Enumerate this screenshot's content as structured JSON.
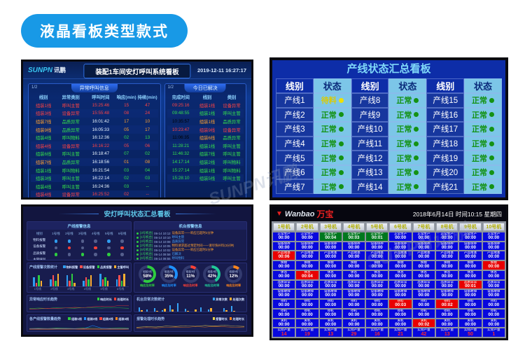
{
  "page": {
    "title": "液晶看板类型款式",
    "watermark": "SUNPN讯鹏"
  },
  "tl": {
    "brand": "SUNPN",
    "brand_cn": "讯鹏",
    "title": "装配1车间安灯呼叫系统看板",
    "datetime": "2019-12-11  16:27:17",
    "left": {
      "page": "1/2",
      "tab": "异常呼叫信息",
      "columns": [
        "线别",
        "异常类别",
        "呼叫时间",
        "响应(min)",
        "持续(min)"
      ],
      "rows": [
        {
          "line": "组装1线",
          "type": "呼叫主管",
          "time": "15:25:46",
          "resp": "15",
          "dur": "47",
          "tone": "red"
        },
        {
          "line": "组装3线",
          "type": "设备异常",
          "time": "15:55:48",
          "resp": "08",
          "dur": "24",
          "tone": "red"
        },
        {
          "line": "组装7线",
          "type": "品质异常",
          "time": "16:01:42",
          "resp": "17",
          "dur": "10",
          "tone": "orange"
        },
        {
          "line": "组装9线",
          "type": "品质异常",
          "time": "16:05:33",
          "resp": "05",
          "dur": "17",
          "tone": "orange"
        },
        {
          "line": "组装4线",
          "type": "呼叫物料",
          "time": "16:12:36",
          "resp": "02",
          "dur": "13",
          "tone": "green"
        },
        {
          "line": "组装4线",
          "type": "设备异常",
          "time": "16:16:22",
          "resp": "05",
          "dur": "06",
          "tone": "red"
        },
        {
          "line": "组装6线",
          "type": "呼叫主管",
          "time": "16:18:47",
          "resp": "07",
          "dur": "02",
          "tone": "green"
        },
        {
          "line": "组装7线",
          "type": "品质异常",
          "time": "16:18:56",
          "resp": "01",
          "dur": "08",
          "tone": "orange"
        },
        {
          "line": "组装1线",
          "type": "呼叫物料",
          "time": "16:21:54",
          "resp": "03",
          "dur": "04",
          "tone": "green"
        },
        {
          "line": "组装3线",
          "type": "呼叫主管",
          "time": "16:22:14",
          "resp": "02",
          "dur": "03",
          "tone": "green"
        },
        {
          "line": "组装4线",
          "type": "呼叫主管",
          "time": "16:24:36",
          "resp": "03",
          "dur": "--",
          "tone": "green"
        },
        {
          "line": "组装4线",
          "type": "设备异常",
          "time": "16:25:52",
          "resp": "02",
          "dur": "--",
          "tone": "red"
        }
      ]
    },
    "right": {
      "page": "1/2",
      "tab": "今日已解决",
      "columns": [
        "完成时间",
        "线别",
        "类别"
      ],
      "rows": [
        {
          "time": "09:25:16",
          "line": "组装1线",
          "type": "设备异常",
          "tone": "red"
        },
        {
          "time": "09:48:55",
          "line": "组装1线",
          "type": "呼叫主管",
          "tone": "green"
        },
        {
          "time": "10:35:57",
          "line": "组装1线",
          "type": "品质异常",
          "tone": "orange"
        },
        {
          "time": "10:23:47",
          "line": "组装9线",
          "type": "设备异常",
          "tone": "red"
        },
        {
          "time": "11:06:35",
          "line": "组装6线",
          "type": "品质异常",
          "tone": "orange"
        },
        {
          "time": "11:28:21",
          "line": "组装1线",
          "type": "呼叫主管",
          "tone": "green"
        },
        {
          "time": "11:46:32",
          "line": "组装7线",
          "type": "呼叫主管",
          "tone": "green"
        },
        {
          "time": "14:17:14",
          "line": "组装2线",
          "type": "呼叫物料",
          "tone": "green"
        },
        {
          "time": "15:27:14",
          "line": "组装1线",
          "type": "呼叫物料",
          "tone": "green"
        },
        {
          "time": "15:28:10",
          "line": "组装5线",
          "type": "呼叫主管",
          "tone": "green"
        }
      ]
    }
  },
  "tr": {
    "title": "产线状态汇总看板",
    "headers": [
      {
        "label": "线别",
        "kind": "hname"
      },
      {
        "label": "状态",
        "kind": "hstatus"
      },
      {
        "label": "线别",
        "kind": "hname"
      },
      {
        "label": "状态",
        "kind": "hstatus"
      },
      {
        "label": "线别",
        "kind": "hname"
      },
      {
        "label": "状态",
        "kind": "hstatus"
      }
    ],
    "lines": [
      {
        "name": "产线1",
        "status": "待料",
        "state": "wait"
      },
      {
        "name": "产线2",
        "status": "正常",
        "state": "ok"
      },
      {
        "name": "产线3",
        "status": "正常",
        "state": "ok"
      },
      {
        "name": "产线4",
        "status": "正常",
        "state": "ok"
      },
      {
        "name": "产线5",
        "status": "正常",
        "state": "ok"
      },
      {
        "name": "产线6",
        "status": "正常",
        "state": "ok"
      },
      {
        "name": "产线7",
        "status": "正常",
        "state": "ok"
      },
      {
        "name": "产线8",
        "status": "正常",
        "state": "ok"
      },
      {
        "name": "产线9",
        "status": "正常",
        "state": "ok"
      },
      {
        "name": "产线10",
        "status": "正常",
        "state": "ok"
      },
      {
        "name": "产线11",
        "status": "正常",
        "state": "ok"
      },
      {
        "name": "产线12",
        "status": "正常",
        "state": "ok"
      },
      {
        "name": "产线13",
        "status": "正常",
        "state": "ok"
      },
      {
        "name": "产线14",
        "status": "正常",
        "state": "ok"
      },
      {
        "name": "产线15",
        "status": "正常",
        "state": "ok"
      },
      {
        "name": "产线16",
        "status": "正常",
        "state": "ok"
      },
      {
        "name": "产线17",
        "status": "正常",
        "state": "ok"
      },
      {
        "name": "产线18",
        "status": "正常",
        "state": "ok"
      },
      {
        "name": "产线19",
        "status": "正常",
        "state": "ok"
      },
      {
        "name": "产线20",
        "status": "正常",
        "state": "ok"
      },
      {
        "name": "产线21",
        "status": "正常",
        "state": "ok"
      }
    ]
  },
  "bl": {
    "title": "安灯呼叫状态汇总看板",
    "matrix": {
      "title": "产线报警信息",
      "corner": "线别",
      "cols": [
        "1号线",
        "2号线",
        "3号线",
        "4号线",
        "5号线",
        "6号线"
      ],
      "rows": [
        {
          "label": "物料报警",
          "dots": [
            "blue",
            "blue",
            "gray",
            "gray",
            "blue",
            "gray"
          ]
        },
        {
          "label": "设备报警",
          "dots": [
            "gray",
            "red",
            "gray",
            "red",
            "gray",
            "red"
          ]
        },
        {
          "label": "品质报警",
          "dots": [
            "green",
            "gray",
            "green",
            "gray",
            "green",
            "gray"
          ]
        },
        {
          "label": "主管呼叫",
          "dots": [
            "gray",
            "orange",
            "orange",
            "gray",
            "gray",
            "orange"
          ]
        }
      ]
    },
    "alarms": {
      "title": "机台报警信息",
      "items": [
        {
          "tag": "[3号机台]",
          "time": "06-14 10:12",
          "text": "设备异常——响应已超时2分钟",
          "tone": "orange"
        },
        {
          "tag": "[1号机台]",
          "time": "06-14 10:10",
          "text": "呼叫主管",
          "tone": "blue"
        },
        {
          "tag": "[4号机台]",
          "time": "06-14 10:08",
          "text": "品质异常",
          "tone": "blue"
        },
        {
          "tag": "[2号机台]",
          "time": "06-14 10:05",
          "text": "物料请求超过预定时间——请尽快补料(3分钟)",
          "tone": "orange"
        },
        {
          "tag": "[5号机台]",
          "time": "06-14 10:02",
          "text": "设备异常——响应已超时2分钟",
          "tone": "orange"
        },
        {
          "tag": "[1号机台]",
          "time": "06-14 09:58",
          "text": "已解决",
          "tone": "blue"
        },
        {
          "tag": "[6号机台]",
          "time": "06-14 09:55",
          "text": "呼叫物料",
          "tone": "blue"
        },
        {
          "tag": "[2号机台]",
          "time": "06-14 09:50",
          "text": "已解决",
          "tone": "gray"
        }
      ]
    },
    "bars": {
      "title": "产线报警次数统计",
      "legend": [
        {
          "label": "物料报警",
          "c": "#2f9df0"
        },
        {
          "label": "设备报警",
          "c": "#ff5050"
        },
        {
          "label": "品质报警",
          "c": "#2ecc40"
        },
        {
          "label": "主管呼叫",
          "c": "#ffb030"
        }
      ],
      "cats": [
        "1号线",
        "2号线",
        "3号线",
        "4号线",
        "5号线",
        "6号线"
      ],
      "values": [
        [
          5,
          2,
          6,
          3
        ],
        [
          4,
          6,
          3,
          7
        ],
        [
          6,
          3,
          7,
          2
        ],
        [
          3,
          5,
          4,
          6
        ],
        [
          7,
          4,
          5,
          3
        ],
        [
          4,
          6,
          3,
          7
        ]
      ]
    },
    "donuts": {
      "items": [
        {
          "label": "组装1线",
          "pct": 58,
          "color": "#2ecc40",
          "caption": "响应及时率"
        },
        {
          "label": "组装2线",
          "pct": 35,
          "color": "#1e90ff",
          "caption": "响应及时率"
        },
        {
          "label": "组装3线",
          "pct": 11,
          "color": "#ff4136",
          "caption": "响应及时率"
        },
        {
          "label": "组装4线",
          "pct": 42,
          "color": "#20c997",
          "caption": "响应及时率"
        },
        {
          "label": "组装5线",
          "pct": 12,
          "color": "#ff851b",
          "caption": "响应及时率"
        }
      ]
    },
    "line1": {
      "title": "异常响应时长趋势",
      "legend": [
        {
          "label": "响应时长",
          "c": "#2ecc40"
        },
        {
          "label": "处理时长",
          "c": "#ff4136"
        }
      ],
      "ticks": [
        "9:00",
        "10:00",
        "11:00",
        "12:00",
        "13:00",
        "14:00",
        "15:00",
        "16:00",
        "17:00",
        "18:00",
        "19:00",
        "20:00"
      ],
      "series": [
        {
          "c": "#2ecc40",
          "values": [
            12,
            15,
            13,
            18,
            16,
            14,
            19,
            17,
            15,
            18,
            16,
            14
          ]
        },
        {
          "c": "#ff4136",
          "values": [
            8,
            10,
            14,
            12,
            16,
            20,
            18,
            24,
            28,
            26,
            32,
            32
          ]
        }
      ]
    },
    "pairbars": {
      "title": "机台异常次数统计",
      "legend": [
        {
          "label": "异常次数",
          "c": "#36a2f5"
        },
        {
          "label": "处理次数",
          "c": "#ffb030"
        }
      ],
      "cats": [
        "1号",
        "2号",
        "3号",
        "4号",
        "5号",
        "6号",
        "7号",
        "8号",
        "9号",
        "10号",
        "11号",
        "12号",
        "13号",
        "14号"
      ],
      "values": [
        [
          30,
          22
        ],
        [
          24,
          18
        ],
        [
          28,
          20
        ],
        [
          22,
          26
        ],
        [
          34,
          24
        ],
        [
          40,
          18
        ],
        [
          26,
          20
        ],
        [
          18,
          24
        ],
        [
          30,
          16
        ],
        [
          24,
          28
        ],
        [
          12,
          18
        ],
        [
          28,
          22
        ],
        [
          32,
          20
        ],
        [
          14,
          18
        ]
      ]
    },
    "line2": {
      "title": "各产线报警数量趋势",
      "legend": [
        {
          "label": "组装1线",
          "c": "#2ecc40"
        },
        {
          "label": "组装2线",
          "c": "#1e90ff"
        },
        {
          "label": "组装3线",
          "c": "#ff4136"
        },
        {
          "label": "组装4线",
          "c": "#ff851b"
        }
      ],
      "ticks": [
        "9:00",
        "10:00",
        "11:00",
        "12:00",
        "13:00",
        "14:00",
        "15:00",
        "16:00",
        "17:00",
        "18:00",
        "19:00",
        "20:00"
      ],
      "series": [
        {
          "c": "#2ecc40",
          "values": [
            10,
            11,
            10,
            12,
            11,
            10,
            12,
            11,
            10,
            11,
            12,
            11
          ]
        },
        {
          "c": "#1e90ff",
          "values": [
            8,
            9,
            8,
            9,
            10,
            9,
            8,
            30,
            12,
            9,
            8,
            9
          ]
        },
        {
          "c": "#ff4136",
          "values": [
            6,
            7,
            6,
            7,
            6,
            7,
            8,
            7,
            6,
            7,
            6,
            7
          ]
        },
        {
          "c": "#ff851b",
          "values": [
            4,
            5,
            4,
            5,
            6,
            5,
            4,
            5,
            4,
            5,
            4,
            5
          ]
        }
      ]
    },
    "line3": {
      "title": "报警处理时长趋势",
      "legend": [
        {
          "label": "报警时长",
          "c": "#e8d44d"
        },
        {
          "label": "处理时长",
          "c": "#ff851b"
        }
      ],
      "ticks": [
        "9:00",
        "10:00",
        "11:00",
        "12:00",
        "13:00",
        "14:00",
        "15:00",
        "16:00",
        "17:00",
        "18:00",
        "19:00",
        "20:00"
      ],
      "series": [
        {
          "c": "#e8d44d",
          "values": [
            18,
            22,
            20,
            26,
            24,
            28,
            25,
            30,
            27,
            32,
            26,
            24
          ]
        },
        {
          "c": "#ff851b",
          "values": [
            12,
            16,
            14,
            18,
            20,
            17,
            22,
            19,
            24,
            21,
            18,
            20
          ]
        }
      ]
    }
  },
  "br": {
    "logo_en": "Wanbao",
    "logo_cn": "万宝",
    "datetime": "2018年6月14日  时间10:15  星期四",
    "machines": [
      "1号机",
      "2号机",
      "3号机",
      "4号机",
      "5号机",
      "6号机",
      "7号机",
      "8号机",
      "9号机",
      "10号机"
    ],
    "rows": [
      {
        "label": "正常生产",
        "values": [
          "00:00",
          "00:00",
          "00:04",
          "00:03",
          "00:01",
          "00:00",
          "00:00",
          "00:00",
          "00:00",
          "00:00"
        ],
        "marks": {
          "2": "green",
          "3": "green",
          "4": "green"
        }
      },
      {
        "label": "设备保养",
        "values": [
          "00:00",
          "00:00",
          "00:00",
          "00:00",
          "00:00",
          "00:00",
          "00:00",
          "00:00",
          "00:00",
          "00:00"
        ]
      },
      {
        "label": "产品堵塞",
        "values": [
          "00:06",
          "00:00",
          "00:00",
          "00:00",
          "00:00",
          "00:00",
          "00:00",
          "00:00",
          "00:00",
          "00:00"
        ],
        "marks": {
          "0": "red"
        }
      },
      {
        "label": "换模",
        "values": [
          "00:00",
          "00:00",
          "00:00",
          "00:00",
          "00:00",
          "00:00",
          "00:00",
          "00:00",
          "00:00",
          "00:00"
        ],
        "marks": {
          "9": "red"
        }
      },
      {
        "label": "休息",
        "values": [
          "00:00",
          "00:04",
          "00:00",
          "00:00",
          "00:00",
          "00:00",
          "00:00",
          "00:00",
          "00:00",
          "00:00"
        ],
        "marks": {
          "1": "red"
        }
      },
      {
        "label": "品质异常",
        "values": [
          "00:00",
          "00:00",
          "00:00",
          "00:00",
          "00:00",
          "00:00",
          "00:00",
          "00:00",
          "00:01",
          "00:00"
        ],
        "marks": {
          "8": "red"
        }
      },
      {
        "label": "设备故障",
        "values": [
          "00:00",
          "00:00",
          "00:00",
          "00:00",
          "00:00",
          "00:00",
          "00:00",
          "00:00",
          "00:00",
          "00:00"
        ]
      },
      {
        "label": "待料",
        "values": [
          "00:00",
          "00:00",
          "00:00",
          "00:00",
          "00:00",
          "00:03",
          "00:00",
          "00:02",
          "00:00",
          "00:00"
        ],
        "marks": {
          "5": "red",
          "7": "red"
        }
      },
      {
        "label": "停机",
        "values": [
          "00:00",
          "00:00",
          "00:00",
          "00:00",
          "00:00",
          "00:00",
          "00:00",
          "00:00",
          "00:00",
          "00:00"
        ]
      },
      {
        "label": "关机",
        "values": [
          "00:00",
          "00:00",
          "00:00",
          "00:00",
          "00:00",
          "00:00",
          "00:02",
          "00:00",
          "00:00",
          "00:00"
        ],
        "marks": {
          "6": "red"
        }
      },
      {
        "label": "实际产量",
        "values": [
          "14",
          "19",
          "13",
          "29",
          "16",
          "21",
          "42",
          "13",
          "50",
          "1"
        ],
        "qty": true
      }
    ]
  }
}
